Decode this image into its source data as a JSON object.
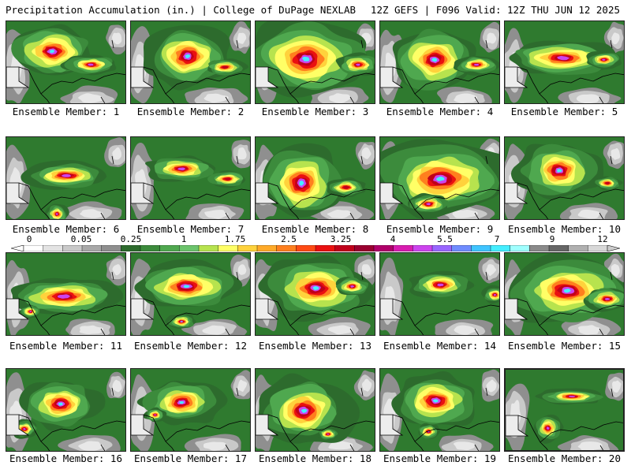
{
  "header": {
    "title_left": "Precipitation Accumulation (in.) | College of DuPage NEXLAB",
    "title_right": "12Z GEFS | F096 Valid: 12Z THU JUN 12 2025"
  },
  "colorbar": {
    "tick_labels": [
      "0",
      "0.05",
      "0.25",
      "1",
      "1.75",
      "2.5",
      "3.25",
      "4",
      "5.5",
      "7",
      "9",
      "12"
    ],
    "colors": [
      "#ffffff",
      "#e3e3e3",
      "#c9c9c9",
      "#a8a8a8",
      "#8f8f8f",
      "#2d6b2d",
      "#3c8b3c",
      "#4fa84f",
      "#6cc46c",
      "#b7e34e",
      "#ffff66",
      "#ffd23c",
      "#ffaa28",
      "#ff7f1e",
      "#ff4a14",
      "#ea1010",
      "#c0001a",
      "#9a0030",
      "#b0006a",
      "#d81cb0",
      "#cc44ee",
      "#9966ff",
      "#6f8cff",
      "#3fc4ff",
      "#44eeff",
      "#a0ffff",
      "#8a8a8a",
      "#666666",
      "#b0b0b0",
      "#d8d8d8"
    ]
  },
  "members": [
    {
      "label": "Ensemble Member: 1"
    },
    {
      "label": "Ensemble Member: 2"
    },
    {
      "label": "Ensemble Member: 3"
    },
    {
      "label": "Ensemble Member: 4"
    },
    {
      "label": "Ensemble Member: 5"
    },
    {
      "label": "Ensemble Member: 6"
    },
    {
      "label": "Ensemble Member: 7"
    },
    {
      "label": "Ensemble Member: 8"
    },
    {
      "label": "Ensemble Member: 9"
    },
    {
      "label": "Ensemble Member: 10"
    },
    {
      "label": "Ensemble Member: 11"
    },
    {
      "label": "Ensemble Member: 12"
    },
    {
      "label": "Ensemble Member: 13"
    },
    {
      "label": "Ensemble Member: 14"
    },
    {
      "label": "Ensemble Member: 15"
    },
    {
      "label": "Ensemble Member: 16"
    },
    {
      "label": "Ensemble Member: 17"
    },
    {
      "label": "Ensemble Member: 18"
    },
    {
      "label": "Ensemble Member: 19"
    },
    {
      "label": "Ensemble Member: 20"
    }
  ]
}
